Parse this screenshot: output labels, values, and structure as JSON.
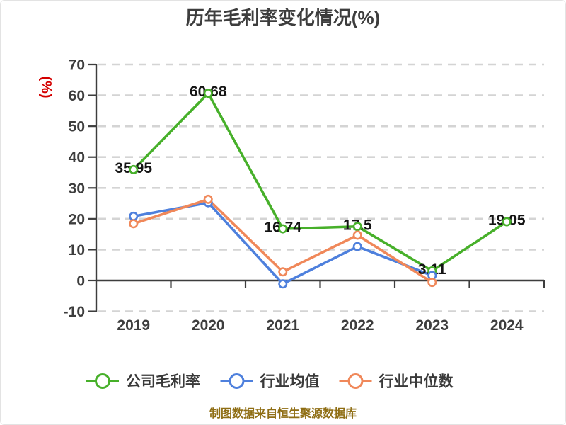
{
  "title": "历年毛利率变化情况(%)",
  "y_axis_unit": "(%)",
  "footer": "制图数据来自恒生聚源数据库",
  "colors": {
    "background": "#ffffff",
    "title_text": "#3d3d3d",
    "axis": "#3d3d3d",
    "grid": "#d4d4d4",
    "tick_text": "#3d3d3d",
    "value_label_text": "#141414",
    "y_unit_text": "#d40000",
    "legend_text": "#3a3a3a",
    "footer_text": "#8f6e14",
    "series_company": "#47b02a",
    "series_industry_avg": "#4e80dd",
    "series_industry_median": "#f0885a"
  },
  "chart_data": {
    "type": "line",
    "title": "历年毛利率变化情况(%)",
    "xlabel": "",
    "ylabel": "(%)",
    "categories": [
      "2019",
      "2020",
      "2021",
      "2022",
      "2023",
      "2024"
    ],
    "series": [
      {
        "name": "公司毛利率",
        "color": "#47b02a",
        "values": [
          35.95,
          60.68,
          16.74,
          17.5,
          3.11,
          19.05
        ],
        "data_labels": [
          "35.95",
          "60.68",
          "16.74",
          "17.5",
          "3.11",
          "19.05"
        ]
      },
      {
        "name": "行业均值",
        "color": "#4e80dd",
        "values": [
          20.8,
          25.2,
          -1.1,
          11.0,
          1.6,
          null
        ],
        "data_labels": null
      },
      {
        "name": "行业中位数",
        "color": "#f0885a",
        "values": [
          18.4,
          26.3,
          2.8,
          14.7,
          -0.6,
          null
        ],
        "data_labels": null
      }
    ],
    "ylim": [
      -10,
      70
    ],
    "ytick_step": 10,
    "grid": "horizontal-dashed",
    "zero_axis": "solid",
    "legend_position": "bottom",
    "marker_style": "circle-white-fill"
  }
}
